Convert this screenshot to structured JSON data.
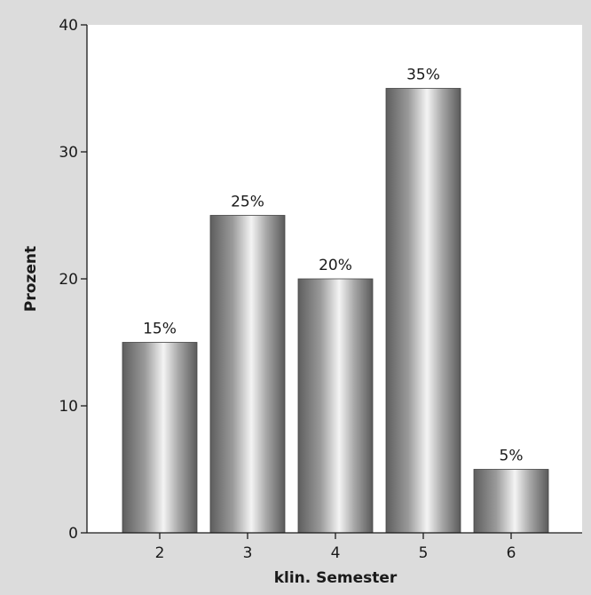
{
  "chart_data": {
    "type": "bar",
    "categories": [
      "2",
      "3",
      "4",
      "5",
      "6"
    ],
    "values": [
      15,
      25,
      20,
      35,
      5
    ],
    "data_labels": [
      "15%",
      "25%",
      "20%",
      "35%",
      "5%"
    ],
    "xlabel": "klin. Semester",
    "ylabel": "Prozent",
    "ylim": [
      0,
      40
    ],
    "yticks": [
      "0",
      "10",
      "20",
      "30",
      "40"
    ],
    "grid": false,
    "colors": {
      "background": "#dcdcdc",
      "plot_area": "#ffffff",
      "bar_dark": "#5e5e5e",
      "bar_light": "#f4f4f4",
      "axis": "#1a1a1a"
    }
  }
}
